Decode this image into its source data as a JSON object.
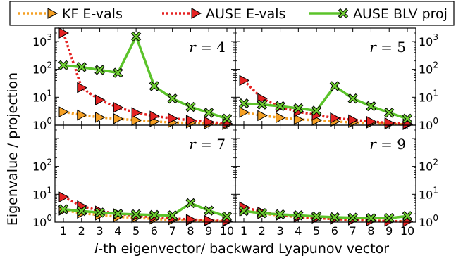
{
  "chart_data": [
    {
      "type": "line",
      "panel_label": "r = 4",
      "x": [
        1,
        2,
        3,
        4,
        5,
        6,
        7,
        8,
        9,
        10
      ],
      "series": [
        {
          "name": "KF E-vals",
          "values": [
            3.0,
            2.3,
            1.9,
            1.7,
            1.5,
            1.35,
            1.25,
            1.2,
            1.12,
            1.05
          ]
        },
        {
          "name": "AUSE E-vals",
          "values": [
            2000,
            22,
            8,
            4.3,
            2.8,
            2.1,
            1.75,
            1.5,
            1.3,
            1.15
          ]
        },
        {
          "name": "AUSE BLV proj",
          "values": [
            140,
            120,
            95,
            75,
            1500,
            25,
            9,
            4.5,
            2.8,
            1.7
          ]
        }
      ],
      "ylim": [
        1,
        3000
      ],
      "ylog": true
    },
    {
      "type": "line",
      "panel_label": "r = 5",
      "x": [
        1,
        2,
        3,
        4,
        5,
        6,
        7,
        8,
        9,
        10
      ],
      "series": [
        {
          "name": "KF E-vals",
          "values": [
            2.9,
            2.2,
            1.85,
            1.6,
            1.5,
            1.35,
            1.25,
            1.2,
            1.1,
            1.05
          ]
        },
        {
          "name": "AUSE E-vals",
          "values": [
            40,
            9,
            4.5,
            3.0,
            2.3,
            1.8,
            1.55,
            1.35,
            1.2,
            1.1
          ]
        },
        {
          "name": "AUSE BLV proj",
          "values": [
            6,
            5.5,
            4.8,
            4.0,
            3.3,
            25,
            9,
            4.8,
            2.8,
            1.7
          ]
        }
      ],
      "ylim": [
        1,
        3000
      ],
      "ylog": true
    },
    {
      "type": "line",
      "panel_label": "r = 7",
      "x": [
        1,
        2,
        3,
        4,
        5,
        6,
        7,
        8,
        9,
        10
      ],
      "series": [
        {
          "name": "KF E-vals",
          "values": [
            2.7,
            2.1,
            1.8,
            1.55,
            1.45,
            1.3,
            1.2,
            1.15,
            1.1,
            1.05
          ]
        },
        {
          "name": "AUSE E-vals",
          "values": [
            8,
            3.8,
            2.5,
            2.0,
            1.7,
            1.5,
            1.35,
            1.25,
            1.15,
            1.1
          ]
        },
        {
          "name": "AUSE BLV proj",
          "values": [
            2.9,
            2.5,
            2.2,
            2.0,
            1.9,
            1.8,
            1.75,
            4.8,
            2.6,
            1.6
          ]
        }
      ],
      "ylim": [
        1,
        3000
      ],
      "ylog": true
    },
    {
      "type": "line",
      "panel_label": "r = 9",
      "x": [
        1,
        2,
        3,
        4,
        5,
        6,
        7,
        8,
        9,
        10
      ],
      "series": [
        {
          "name": "KF E-vals",
          "values": [
            2.6,
            2.0,
            1.75,
            1.5,
            1.4,
            1.3,
            1.2,
            1.15,
            1.1,
            1.05
          ]
        },
        {
          "name": "AUSE E-vals",
          "values": [
            3.5,
            2.3,
            1.8,
            1.55,
            1.4,
            1.3,
            1.2,
            1.12,
            1.08,
            1.05
          ]
        },
        {
          "name": "AUSE BLV proj",
          "values": [
            2.5,
            2.1,
            1.9,
            1.75,
            1.6,
            1.5,
            1.45,
            1.4,
            1.4,
            1.65
          ]
        }
      ],
      "ylim": [
        1,
        3000
      ],
      "ylog": true
    }
  ],
  "legend": [
    {
      "label": "KF E-vals",
      "color": "#f5a024",
      "marker": "triangle-right",
      "line": "dotted"
    },
    {
      "label": "AUSE E-vals",
      "color": "#e52222",
      "marker": "triangle-right",
      "line": "dotted"
    },
    {
      "label": "AUSE BLV proj",
      "color": "#6fd131",
      "marker": "x-filled",
      "line": "solid"
    }
  ],
  "ylabel": "Eigenvalue / projection",
  "xlabel_prefix": "i",
  "xlabel_rest": "-th eigenvector/ backward Lyapunov vector",
  "xticks": [
    "1",
    "2",
    "3",
    "4",
    "5",
    "6",
    "7",
    "8",
    "9",
    "10"
  ],
  "yticks": [
    {
      "base": "10",
      "exp": "0",
      "value": 1
    },
    {
      "base": "10",
      "exp": "1",
      "value": 10
    },
    {
      "base": "10",
      "exp": "2",
      "value": 100
    },
    {
      "base": "10",
      "exp": "3",
      "value": 1000
    }
  ],
  "line_colors": {
    "kf_marker": "#f5a024",
    "kf_line": "#f5a024",
    "ause_marker": "#e52222",
    "ause_line": "#e52222",
    "blv_marker": "#6fd131",
    "blv_line": "#5bc32a"
  }
}
